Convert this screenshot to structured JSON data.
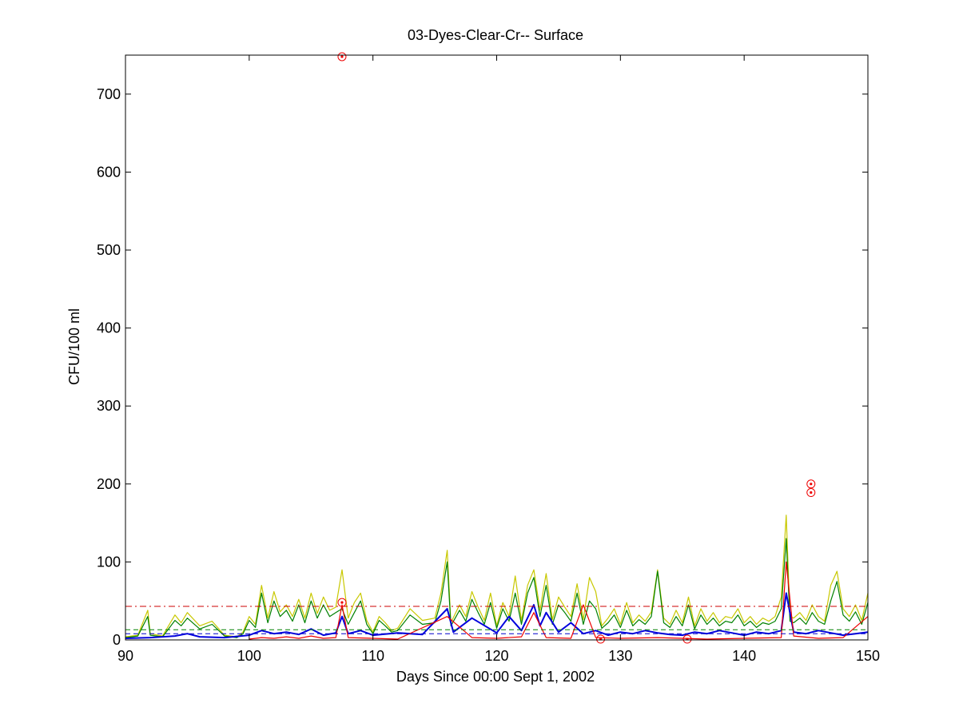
{
  "chart_data": {
    "type": "line",
    "title": "03-Dyes-Clear-Cr-- Surface",
    "xlabel": "Days Since 00:00 Sept 1, 2002",
    "ylabel": "CFU/100 ml",
    "xlim": [
      90,
      150
    ],
    "ylim": [
      0,
      750
    ],
    "xticks": [
      90,
      100,
      110,
      120,
      130,
      140,
      150
    ],
    "yticks": [
      0,
      100,
      200,
      300,
      400,
      500,
      600,
      700
    ],
    "xtick_labels": [
      "90",
      "100",
      "110",
      "120",
      "130",
      "140",
      "150"
    ],
    "ytick_labels": [
      "0",
      "100",
      "200",
      "300",
      "400",
      "500",
      "600",
      "700"
    ],
    "grid": false,
    "reference_lines": [
      {
        "y": 43,
        "color": "#cc0000",
        "style": "dash-dot"
      },
      {
        "y": 13,
        "color": "#008000",
        "style": "dashed"
      },
      {
        "y": 8,
        "color": "#0000cc",
        "style": "dashed"
      }
    ],
    "series": [
      {
        "color": "#c8c800",
        "x": [
          90,
          91,
          91.8,
          92,
          93,
          94,
          94.5,
          95,
          96,
          97,
          98,
          99,
          99.5,
          100,
          100.5,
          101,
          101.5,
          102,
          102.5,
          103,
          103.5,
          104,
          104.5,
          105,
          105.5,
          106,
          106.5,
          107,
          107.5,
          108,
          108.5,
          109,
          109.5,
          110,
          110.5,
          111,
          111.5,
          112,
          113,
          114,
          115,
          115.5,
          116,
          116.3,
          117,
          117.5,
          118,
          118.5,
          119,
          119.5,
          120,
          120.5,
          121,
          121.5,
          122,
          122.5,
          123,
          123.5,
          124,
          124.5,
          125,
          125.5,
          126,
          126.5,
          127,
          127.5,
          128,
          128.5,
          129,
          129.5,
          130,
          130.5,
          131,
          131.5,
          132,
          132.5,
          133,
          133.5,
          134,
          134.5,
          135,
          135.5,
          136,
          136.5,
          137,
          137.5,
          138,
          138.5,
          139,
          139.5,
          140,
          140.5,
          141,
          141.5,
          142,
          142.5,
          143,
          143.4,
          143.7,
          144,
          144.5,
          145,
          145.5,
          146,
          146.5,
          147,
          147.5,
          148,
          148.5,
          149,
          149.5,
          150
        ],
        "y": [
          4,
          6,
          38,
          8,
          5,
          32,
          22,
          35,
          18,
          24,
          6,
          4,
          10,
          30,
          20,
          70,
          28,
          62,
          36,
          45,
          30,
          52,
          28,
          60,
          34,
          55,
          38,
          42,
          90,
          28,
          48,
          60,
          25,
          10,
          30,
          22,
          12,
          15,
          40,
          25,
          28,
          60,
          115,
          22,
          45,
          30,
          62,
          42,
          25,
          60,
          18,
          48,
          30,
          82,
          25,
          70,
          90,
          38,
          85,
          26,
          55,
          42,
          30,
          72,
          26,
          80,
          62,
          18,
          28,
          40,
          20,
          48,
          22,
          32,
          24,
          36,
          90,
          28,
          20,
          38,
          22,
          55,
          18,
          40,
          24,
          35,
          22,
          30,
          28,
          40,
          22,
          30,
          20,
          28,
          24,
          30,
          55,
          160,
          30,
          28,
          35,
          25,
          45,
          30,
          24,
          70,
          88,
          40,
          30,
          45,
          25,
          60
        ]
      },
      {
        "color": "#008000",
        "x": [
          90,
          91,
          91.8,
          92,
          93,
          94,
          94.5,
          95,
          96,
          97,
          98,
          99,
          99.5,
          100,
          100.5,
          101,
          101.5,
          102,
          102.5,
          103,
          103.5,
          104,
          104.5,
          105,
          105.5,
          106,
          106.5,
          107,
          107.5,
          108,
          108.5,
          109,
          109.5,
          110,
          110.5,
          111,
          111.5,
          112,
          113,
          114,
          115,
          115.5,
          116,
          116.3,
          117,
          117.5,
          118,
          118.5,
          119,
          119.5,
          120,
          120.5,
          121,
          121.5,
          122,
          122.5,
          123,
          123.5,
          124,
          124.5,
          125,
          125.5,
          126,
          126.5,
          127,
          127.5,
          128,
          128.5,
          129,
          129.5,
          130,
          130.5,
          131,
          131.5,
          132,
          132.5,
          133,
          133.5,
          134,
          134.5,
          135,
          135.5,
          136,
          136.5,
          137,
          137.5,
          138,
          138.5,
          139,
          139.5,
          140,
          140.5,
          141,
          141.5,
          142,
          142.5,
          143,
          143.4,
          143.7,
          144,
          144.5,
          145,
          145.5,
          146,
          146.5,
          147,
          147.5,
          148,
          148.5,
          149,
          149.5,
          150
        ],
        "y": [
          3,
          5,
          30,
          6,
          4,
          25,
          18,
          28,
          14,
          20,
          5,
          3,
          8,
          25,
          16,
          60,
          22,
          50,
          30,
          38,
          24,
          45,
          22,
          50,
          28,
          45,
          30,
          35,
          40,
          20,
          35,
          50,
          20,
          8,
          25,
          18,
          10,
          12,
          32,
          20,
          22,
          50,
          100,
          18,
          38,
          24,
          52,
          35,
          20,
          48,
          15,
          40,
          24,
          60,
          20,
          60,
          80,
          30,
          70,
          20,
          45,
          35,
          24,
          60,
          20,
          50,
          40,
          15,
          22,
          32,
          16,
          38,
          18,
          26,
          20,
          30,
          88,
          22,
          16,
          30,
          18,
          45,
          14,
          32,
          20,
          28,
          18,
          24,
          22,
          32,
          18,
          24,
          16,
          22,
          20,
          24,
          40,
          130,
          24,
          22,
          28,
          20,
          35,
          24,
          20,
          50,
          75,
          32,
          24,
          36,
          20,
          48
        ]
      },
      {
        "color": "#0000dd",
        "x": [
          90,
          92,
          94,
          95,
          96,
          98,
          100,
          101,
          102,
          103,
          104,
          105,
          106,
          107,
          107.5,
          108,
          109,
          110,
          112,
          114,
          116,
          116.5,
          118,
          120,
          121,
          122,
          123,
          123.5,
          124,
          125,
          126,
          127,
          128,
          129,
          130,
          131,
          132,
          133,
          134,
          135,
          136,
          137,
          138,
          139,
          140,
          141,
          142,
          143,
          143.4,
          144,
          145,
          146,
          147,
          148,
          149,
          150
        ],
        "y": [
          2,
          3,
          5,
          8,
          4,
          3,
          6,
          12,
          8,
          10,
          7,
          14,
          6,
          9,
          30,
          8,
          12,
          6,
          9,
          7,
          40,
          10,
          28,
          9,
          30,
          12,
          45,
          18,
          35,
          10,
          22,
          8,
          12,
          6,
          10,
          8,
          12,
          9,
          7,
          6,
          10,
          8,
          12,
          9,
          6,
          10,
          8,
          12,
          60,
          10,
          8,
          12,
          9,
          6,
          8,
          10
        ]
      },
      {
        "color": "#ee0000",
        "x": [
          100,
          101,
          102,
          103,
          104,
          105,
          106,
          107,
          107.5,
          108,
          110,
          112,
          116,
          118,
          120,
          122,
          123,
          124,
          126,
          127,
          128,
          130,
          133,
          135,
          137,
          140,
          143,
          143.4,
          144,
          146,
          148,
          150
        ],
        "y": [
          1,
          3,
          2,
          4,
          2,
          5,
          2,
          3,
          45,
          3,
          2,
          1,
          30,
          3,
          2,
          4,
          35,
          3,
          2,
          45,
          3,
          2,
          3,
          2,
          1,
          2,
          3,
          100,
          5,
          2,
          3,
          30
        ]
      }
    ],
    "markers": [
      {
        "x": 107.5,
        "y": 748
      },
      {
        "x": 107.5,
        "y": 48
      },
      {
        "x": 128.4,
        "y": 1
      },
      {
        "x": 135.4,
        "y": 1
      },
      {
        "x": 145.4,
        "y": 200
      },
      {
        "x": 145.4,
        "y": 189
      }
    ],
    "marker_color": "#ee0000"
  }
}
